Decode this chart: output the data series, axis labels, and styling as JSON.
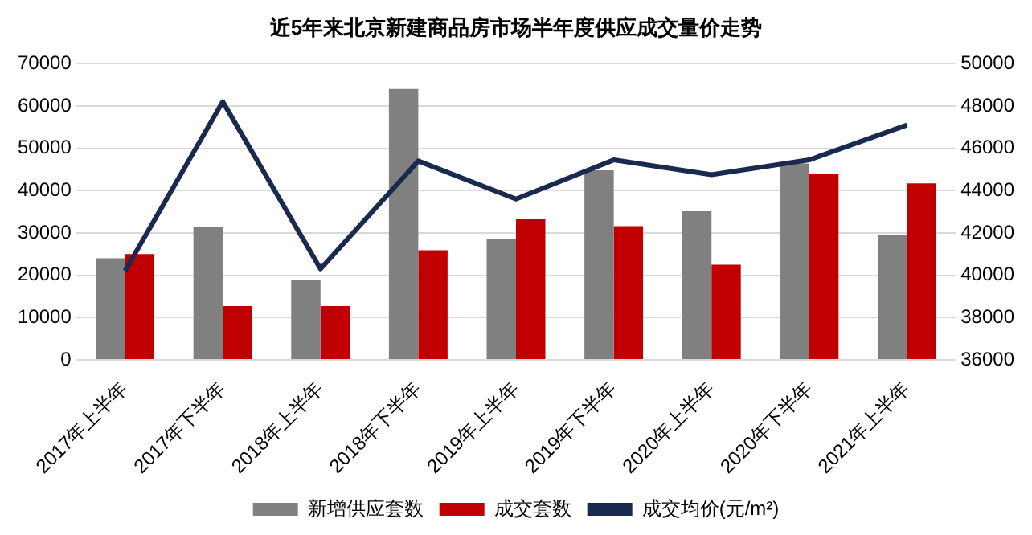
{
  "chart_data": {
    "type": "bar",
    "title": "近5年来北京新建商品房市场半年度供应成交量价走势",
    "categories": [
      "2017年上半年",
      "2017年下半年",
      "2018年上半年",
      "2018年下半年",
      "2019年上半年",
      "2019年下半年",
      "2020年上半年",
      "2020年下半年",
      "2021年上半年"
    ],
    "series": [
      {
        "name": "新增供应套数",
        "color": "#808080",
        "values": [
          24000,
          31500,
          18800,
          64000,
          28500,
          44800,
          35100,
          46400,
          29500
        ]
      },
      {
        "name": "成交套数",
        "color": "#c00000",
        "values": [
          25000,
          12700,
          12700,
          25900,
          33200,
          31600,
          22500,
          43900,
          41700
        ]
      },
      {
        "name": "成交均价(元/m²)",
        "type": "line",
        "axis": "y2",
        "color": "#1a2a4f",
        "values": [
          40200,
          48200,
          40300,
          45400,
          43600,
          45450,
          44750,
          45450,
          47100
        ]
      }
    ],
    "ylim": [
      0,
      70000
    ],
    "yticks": [
      0,
      10000,
      20000,
      30000,
      40000,
      50000,
      60000,
      70000
    ],
    "y2lim": [
      36000,
      50000
    ],
    "y2ticks": [
      36000,
      38000,
      40000,
      42000,
      44000,
      46000,
      48000,
      50000
    ],
    "grid": "y",
    "legend": "bottom",
    "marker": "none"
  }
}
